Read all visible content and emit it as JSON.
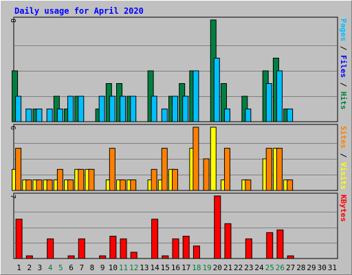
{
  "chart_data": {
    "type": "bar",
    "title": "Daily usage for April 2020",
    "days": [
      "1",
      "2",
      "3",
      "4",
      "5",
      "6",
      "7",
      "8",
      "9",
      "10",
      "11",
      "12",
      "13",
      "14",
      "15",
      "16",
      "17",
      "18",
      "19",
      "20",
      "21",
      "22",
      "23",
      "24",
      "25",
      "26",
      "27",
      "28",
      "29",
      "30",
      "31"
    ],
    "weekend_days": [
      "4",
      "5",
      "11",
      "12",
      "18",
      "19",
      "25",
      "26"
    ],
    "colors": {
      "title": "#0000ff",
      "pages": "#008040",
      "files": "#00c0ff",
      "hits": "#008040",
      "sites": "#ff8000",
      "visits": "#ffff00",
      "kbytes": "#ff0000",
      "weekend": "#008040",
      "weekday": "#000000",
      "panel": "#c0c0c0"
    },
    "panels": [
      {
        "id": "hits-panel",
        "ymax": 8,
        "ymax_label": "8",
        "legend": [
          {
            "text": "Pages",
            "color": "#00c0ff"
          },
          {
            "text": " / ",
            "color": "#000000"
          },
          {
            "text": "Files",
            "color": "#0000ff"
          },
          {
            "text": " / ",
            "color": "#000000"
          },
          {
            "text": "Hits",
            "color": "#008040"
          }
        ],
        "series": [
          {
            "name": "Hits",
            "color": "#008040",
            "values": [
              4,
              0,
              1,
              0,
              2,
              1,
              2,
              0,
              1,
              3,
              3,
              2,
              0,
              4,
              0,
              2,
              3,
              4,
              0,
              8,
              3,
              0,
              2,
              0,
              4,
              5,
              1,
              0,
              0,
              0,
              0
            ]
          },
          {
            "name": "Files",
            "color": "#00c0ff",
            "values": [
              2,
              1,
              1,
              1,
              1,
              2,
              2,
              0,
              2,
              2,
              2,
              2,
              0,
              2,
              1,
              2,
              2,
              4,
              0,
              5,
              1,
              0,
              1,
              0,
              3,
              4,
              1,
              0,
              0,
              0,
              0
            ]
          },
          {
            "name": "Pages",
            "color": "#00c0ff",
            "values": [
              0,
              0,
              0,
              0,
              0,
              0,
              0,
              0,
              0,
              0,
              0,
              0,
              0,
              0,
              0,
              0,
              0,
              0,
              0,
              0,
              0,
              0,
              0,
              0,
              0,
              0,
              0,
              0,
              0,
              0,
              0
            ]
          }
        ]
      },
      {
        "id": "visits-panel",
        "ymax": 6,
        "ymax_label": "6",
        "legend": [
          {
            "text": "Sites",
            "color": "#ff8000"
          },
          {
            "text": " / ",
            "color": "#000000"
          },
          {
            "text": "Visits",
            "color": "#ffff00"
          }
        ],
        "series": [
          {
            "name": "Visits",
            "color": "#ffff00",
            "values": [
              2,
              1,
              1,
              1,
              1,
              1,
              2,
              2,
              0,
              1,
              1,
              1,
              0,
              1,
              1,
              2,
              0,
              4,
              0,
              6,
              1,
              0,
              1,
              0,
              3,
              4,
              1,
              0,
              0,
              0,
              0
            ]
          },
          {
            "name": "Sites",
            "color": "#ff8000",
            "values": [
              4,
              1,
              1,
              1,
              2,
              1,
              2,
              2,
              0,
              4,
              1,
              1,
              0,
              2,
              4,
              2,
              0,
              6,
              3,
              0,
              4,
              0,
              1,
              0,
              4,
              4,
              1,
              0,
              0,
              0,
              0
            ]
          }
        ]
      },
      {
        "id": "kbytes-panel",
        "ymax": 7,
        "ymax_label": "7",
        "legend": [
          {
            "text": "KBytes",
            "color": "#ff0000"
          }
        ],
        "series": [
          {
            "name": "KBytes",
            "color": "#ff0000",
            "values": [
              4.4,
              0.3,
              0,
              2.2,
              0,
              0.3,
              2.2,
              0,
              0.3,
              2.5,
              2.2,
              0.7,
              0,
              4.4,
              0.3,
              2.2,
              2.5,
              1.4,
              0,
              7,
              3.9,
              0,
              2.2,
              0,
              2.9,
              3.2,
              0.3,
              0,
              0,
              0,
              0
            ]
          }
        ]
      }
    ]
  }
}
